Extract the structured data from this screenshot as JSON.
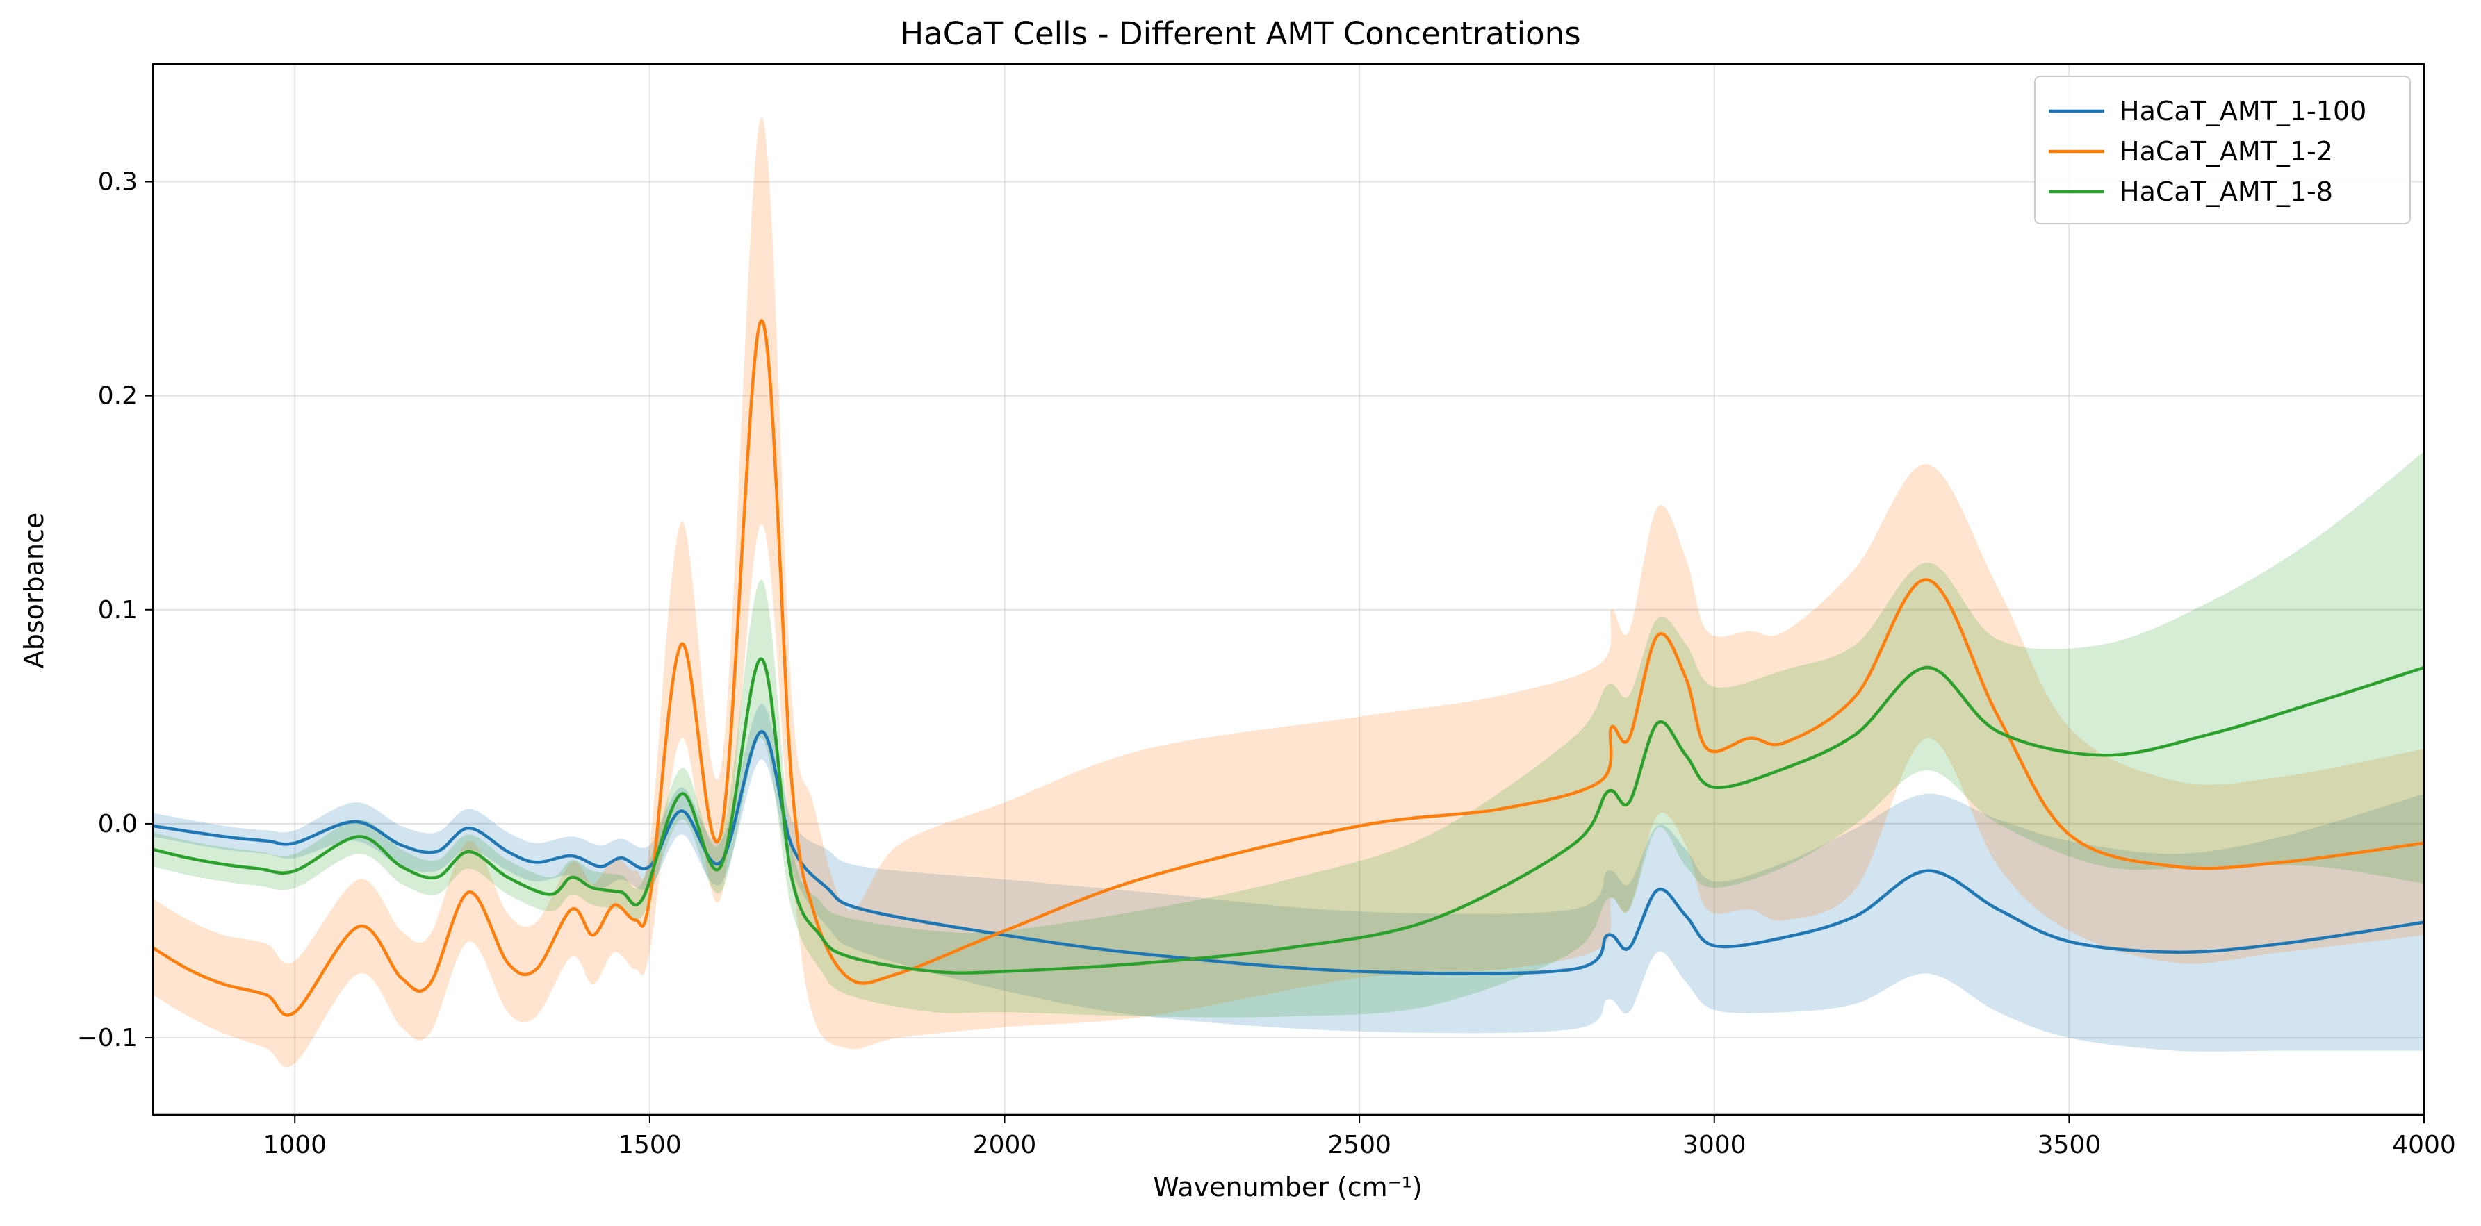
{
  "chart_data": {
    "type": "line",
    "title": "HaCaT Cells - Different AMT Concentrations",
    "xlabel": "Wavenumber (cm⁻¹)",
    "ylabel": "Absorbance",
    "xlim": [
      800,
      4000
    ],
    "ylim": [
      -0.136,
      0.355
    ],
    "xticks": [
      1000,
      1500,
      2000,
      2500,
      3000,
      3500,
      4000
    ],
    "yticks": [
      -0.1,
      0.0,
      0.1,
      0.2,
      0.3
    ],
    "xtick_labels": [
      "1000",
      "1500",
      "2000",
      "2500",
      "3000",
      "3500",
      "4000"
    ],
    "ytick_labels": [
      "−0.1",
      "0.0",
      "0.1",
      "0.2",
      "0.3"
    ],
    "grid": true,
    "legend_position": "top-right",
    "series": [
      {
        "name": "HaCaT_AMT_1-100",
        "color": "#1f77b4",
        "x": [
          800,
          900,
          960,
          1000,
          1085,
          1150,
          1200,
          1245,
          1300,
          1340,
          1390,
          1430,
          1460,
          1500,
          1545,
          1600,
          1657,
          1700,
          1750,
          1800,
          2000,
          2200,
          2500,
          2800,
          2850,
          2880,
          2920,
          2960,
          3000,
          3100,
          3200,
          3300,
          3400,
          3500,
          3650,
          3800,
          4000
        ],
        "values": [
          -0.001,
          -0.006,
          -0.008,
          -0.009,
          0.001,
          -0.01,
          -0.013,
          -0.002,
          -0.013,
          -0.018,
          -0.015,
          -0.02,
          -0.016,
          -0.02,
          0.006,
          -0.018,
          0.043,
          -0.01,
          -0.03,
          -0.04,
          -0.052,
          -0.061,
          -0.069,
          -0.068,
          -0.052,
          -0.058,
          -0.031,
          -0.043,
          -0.057,
          -0.053,
          -0.043,
          -0.022,
          -0.04,
          -0.055,
          -0.06,
          -0.056,
          -0.046
        ],
        "band_low": [
          -0.006,
          -0.012,
          -0.014,
          -0.016,
          -0.008,
          -0.02,
          -0.022,
          -0.012,
          -0.022,
          -0.027,
          -0.024,
          -0.03,
          -0.026,
          -0.03,
          -0.005,
          -0.028,
          0.03,
          -0.022,
          -0.048,
          -0.06,
          -0.078,
          -0.09,
          -0.097,
          -0.096,
          -0.082,
          -0.088,
          -0.06,
          -0.074,
          -0.087,
          -0.088,
          -0.084,
          -0.07,
          -0.088,
          -0.1,
          -0.106,
          -0.106,
          -0.106
        ],
        "band_high": [
          0.005,
          -0.001,
          -0.003,
          -0.003,
          0.01,
          -0.001,
          -0.004,
          0.007,
          -0.004,
          -0.009,
          -0.006,
          -0.01,
          -0.007,
          -0.01,
          0.017,
          -0.008,
          0.056,
          0.002,
          -0.012,
          -0.02,
          -0.026,
          -0.032,
          -0.041,
          -0.04,
          -0.022,
          -0.028,
          -0.001,
          -0.012,
          -0.027,
          -0.018,
          -0.002,
          0.014,
          0.002,
          -0.008,
          -0.014,
          -0.006,
          0.014
        ]
      },
      {
        "name": "HaCaT_AMT_1-2",
        "color": "#ff7f0e",
        "x": [
          800,
          850,
          900,
          960,
          1000,
          1090,
          1150,
          1190,
          1245,
          1300,
          1340,
          1390,
          1420,
          1450,
          1480,
          1500,
          1545,
          1600,
          1657,
          1700,
          1730,
          1780,
          1850,
          2000,
          2200,
          2500,
          2700,
          2840,
          2855,
          2880,
          2920,
          2960,
          2990,
          3050,
          3100,
          3200,
          3300,
          3400,
          3500,
          3650,
          3800,
          4000
        ],
        "values": [
          -0.058,
          -0.068,
          -0.075,
          -0.08,
          -0.088,
          -0.048,
          -0.072,
          -0.075,
          -0.032,
          -0.065,
          -0.068,
          -0.04,
          -0.052,
          -0.038,
          -0.045,
          -0.035,
          0.084,
          -0.005,
          0.235,
          0.02,
          -0.04,
          -0.072,
          -0.07,
          -0.05,
          -0.025,
          -0.001,
          0.007,
          0.02,
          0.045,
          0.04,
          0.088,
          0.068,
          0.035,
          0.04,
          0.038,
          0.06,
          0.114,
          0.05,
          -0.005,
          -0.02,
          -0.018,
          -0.009
        ],
        "band_low": [
          -0.08,
          -0.09,
          -0.098,
          -0.105,
          -0.112,
          -0.07,
          -0.095,
          -0.098,
          -0.055,
          -0.088,
          -0.09,
          -0.062,
          -0.075,
          -0.06,
          -0.068,
          -0.06,
          0.04,
          -0.035,
          0.14,
          -0.02,
          -0.09,
          -0.105,
          -0.1,
          -0.095,
          -0.09,
          -0.072,
          -0.068,
          -0.058,
          -0.035,
          -0.04,
          0.004,
          -0.01,
          -0.04,
          -0.04,
          -0.045,
          -0.03,
          0.04,
          -0.02,
          -0.05,
          -0.065,
          -0.06,
          -0.052
        ],
        "band_high": [
          -0.035,
          -0.045,
          -0.052,
          -0.056,
          -0.064,
          -0.026,
          -0.05,
          -0.052,
          -0.008,
          -0.042,
          -0.046,
          -0.018,
          -0.028,
          -0.016,
          -0.022,
          -0.01,
          0.141,
          0.025,
          0.33,
          0.06,
          0.01,
          -0.04,
          -0.01,
          0.01,
          0.035,
          0.05,
          0.06,
          0.075,
          0.1,
          0.09,
          0.148,
          0.124,
          0.09,
          0.09,
          0.09,
          0.12,
          0.168,
          0.11,
          0.045,
          0.02,
          0.022,
          0.035
        ]
      },
      {
        "name": "HaCaT_AMT_1-8",
        "color": "#2ca02c",
        "x": [
          800,
          850,
          900,
          950,
          1000,
          1090,
          1150,
          1200,
          1245,
          1300,
          1360,
          1390,
          1420,
          1460,
          1490,
          1545,
          1600,
          1657,
          1700,
          1740,
          1780,
          1900,
          2000,
          2200,
          2400,
          2600,
          2800,
          2850,
          2880,
          2920,
          2960,
          3000,
          3100,
          3200,
          3300,
          3400,
          3550,
          3700,
          3850,
          4000
        ],
        "values": [
          -0.012,
          -0.016,
          -0.019,
          -0.021,
          -0.022,
          -0.006,
          -0.02,
          -0.025,
          -0.013,
          -0.025,
          -0.033,
          -0.025,
          -0.03,
          -0.032,
          -0.035,
          0.014,
          -0.02,
          0.077,
          -0.025,
          -0.052,
          -0.062,
          -0.069,
          -0.069,
          -0.065,
          -0.058,
          -0.045,
          -0.01,
          0.015,
          0.01,
          0.047,
          0.032,
          0.017,
          0.026,
          0.042,
          0.073,
          0.043,
          0.032,
          0.042,
          0.057,
          0.073
        ],
        "band_low": [
          -0.02,
          -0.024,
          -0.027,
          -0.029,
          -0.03,
          -0.014,
          -0.028,
          -0.033,
          -0.021,
          -0.033,
          -0.041,
          -0.033,
          -0.038,
          -0.04,
          -0.043,
          0.002,
          -0.032,
          0.04,
          -0.04,
          -0.068,
          -0.08,
          -0.088,
          -0.088,
          -0.09,
          -0.09,
          -0.085,
          -0.06,
          -0.035,
          -0.04,
          -0.002,
          -0.02,
          -0.03,
          -0.02,
          0.0,
          0.025,
          0.0,
          -0.02,
          -0.02,
          -0.02,
          -0.028
        ],
        "band_high": [
          -0.004,
          -0.008,
          -0.011,
          -0.013,
          -0.014,
          0.002,
          -0.012,
          -0.017,
          -0.005,
          -0.017,
          -0.025,
          -0.017,
          -0.022,
          -0.024,
          -0.027,
          0.026,
          -0.008,
          0.114,
          -0.01,
          -0.036,
          -0.044,
          -0.05,
          -0.05,
          -0.04,
          -0.026,
          -0.005,
          0.04,
          0.065,
          0.06,
          0.096,
          0.084,
          0.064,
          0.072,
          0.084,
          0.122,
          0.086,
          0.084,
          0.104,
          0.134,
          0.174
        ]
      }
    ]
  }
}
